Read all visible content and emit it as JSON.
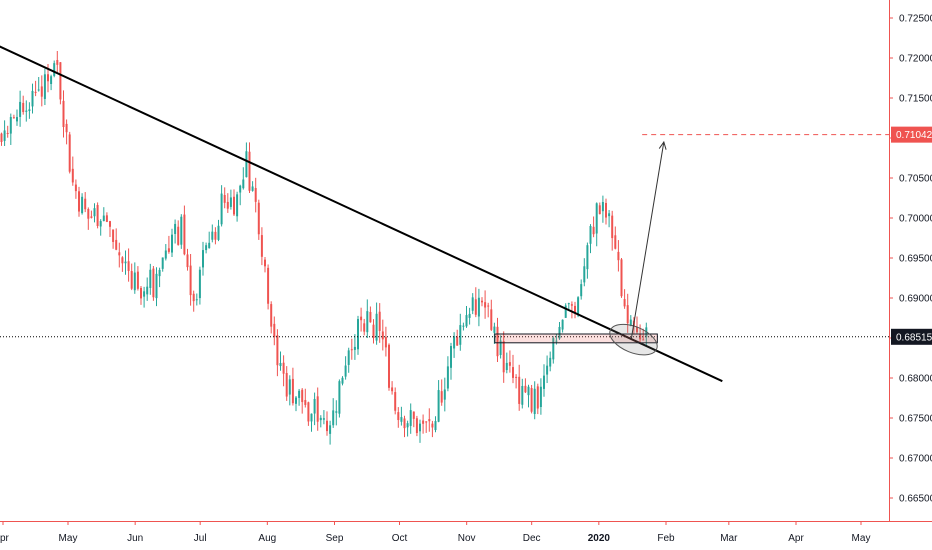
{
  "chart_data": {
    "type": "candlestick",
    "title": "",
    "xlabel": "",
    "ylabel": "",
    "ylim": [
      0.663,
      0.7265
    ],
    "y_ticks": [
      "0.72500",
      "0.72000",
      "0.71500",
      "0.71000",
      "0.70500",
      "0.70000",
      "0.69500",
      "0.69000",
      "0.68500",
      "0.68000",
      "0.67500",
      "0.67000",
      "0.66500"
    ],
    "x_ticks": [
      "pr",
      "May",
      "Jun",
      "Jul",
      "Aug",
      "Sep",
      "Oct",
      "Nov",
      "Dec",
      "2020",
      "Feb",
      "Mar",
      "Apr",
      "May"
    ],
    "x_ticks_bold": [
      "2020"
    ],
    "current_price": {
      "label": "0.68515",
      "value": 0.68515
    },
    "target_price": {
      "label": "0.71042",
      "value": 0.71042
    },
    "series": [
      {
        "color": "#26a69a",
        "direction": "up"
      },
      {
        "color": "#ef5350",
        "direction": "down"
      }
    ],
    "annotations": [
      {
        "type": "trendline",
        "from": {
          "date": "2019-03-22",
          "price": 0.7225
        },
        "to": {
          "date": "2020-02-27",
          "price": 0.6796
        }
      },
      {
        "type": "support-zone",
        "from_date": "2019-11-14",
        "to_date": "2020-01-28",
        "low": 0.6844,
        "high": 0.6855
      },
      {
        "type": "ellipse",
        "center": {
          "date": "2020-01-17",
          "price": 0.6848
        }
      },
      {
        "type": "arrow",
        "from": {
          "date": "2020-01-16",
          "price": 0.6849
        },
        "to": {
          "date": "2020-01-31",
          "price": 0.7095
        }
      }
    ],
    "colors": {
      "up": "#26a69a",
      "down": "#ef5350",
      "badge_current": "#131722",
      "badge_target": "#ef5350",
      "trendline": "#000000"
    }
  }
}
